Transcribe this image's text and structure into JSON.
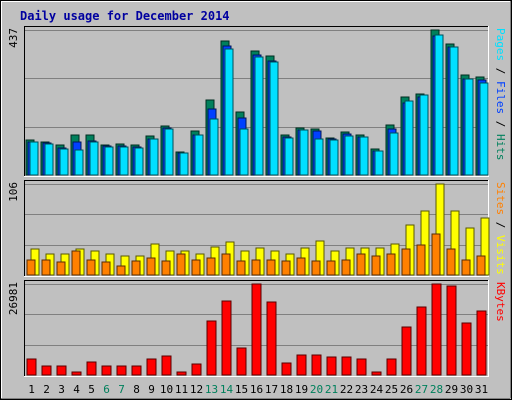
{
  "chart_data": {
    "type": "bar",
    "title": "Daily usage for December 2014",
    "categories": [
      "1",
      "2",
      "3",
      "4",
      "5",
      "6",
      "7",
      "8",
      "9",
      "10",
      "11",
      "12",
      "13",
      "14",
      "15",
      "16",
      "17",
      "18",
      "19",
      "20",
      "21",
      "22",
      "23",
      "24",
      "25",
      "26",
      "27",
      "28",
      "29",
      "30",
      "31"
    ],
    "weekend_days": [
      "6",
      "7",
      "13",
      "14",
      "20",
      "21",
      "27",
      "28"
    ],
    "panels": [
      {
        "id": "hits-files-pages",
        "y_max_label": "437",
        "ylim": [
          0,
          437
        ],
        "grid": true,
        "legend_words": [
          {
            "text": "Pages",
            "color": "#00e0ff"
          },
          {
            "text": "Files",
            "color": "#0040ff"
          },
          {
            "text": "Hits",
            "color": "#00805c"
          }
        ],
        "series": [
          {
            "name": "Hits",
            "color": "#00805c",
            "values": [
              105,
              100,
              90,
              120,
              120,
              90,
              93,
              90,
              118,
              148,
              70,
              133,
              225,
              405,
              190,
              375,
              358,
              122,
              143,
              140,
              112,
              130,
              120,
              78,
              152,
              235,
              245,
              437,
              395,
              302,
              295
            ]
          },
          {
            "name": "Files",
            "color": "#0040ff",
            "values": [
              100,
              95,
              80,
              98,
              103,
              86,
              88,
              85,
              110,
              142,
              67,
              120,
              200,
              390,
              172,
              362,
              345,
              115,
              137,
              133,
              108,
              125,
              115,
              73,
              140,
              218,
              235,
              420,
              385,
              290,
              285
            ]
          },
          {
            "name": "Pages",
            "color": "#00e0ff",
            "values": [
              100,
              93,
              78,
              75,
              100,
              85,
              85,
              80,
              110,
              140,
              65,
              120,
              170,
              380,
              140,
              357,
              342,
              112,
              137,
              110,
              105,
              118,
              115,
              73,
              128,
              224,
              240,
              422,
              385,
              288,
              278
            ]
          }
        ]
      },
      {
        "id": "visits-sites",
        "y_max_label": "106",
        "ylim": [
          0,
          106
        ],
        "grid": true,
        "legend_words": [
          {
            "text": "Sites",
            "color": "#ff8000"
          },
          {
            "text": "Visits",
            "color": "#ffff00"
          }
        ],
        "series": [
          {
            "name": "Visits",
            "color": "#ffff00",
            "values": [
              30,
              25,
              25,
              30,
              28,
              25,
              22,
              22,
              36,
              28,
              28,
              25,
              33,
              38,
              28,
              32,
              28,
              25,
              32,
              40,
              28,
              32,
              32,
              32,
              36,
              58,
              75,
              106,
              75,
              55,
              66
            ]
          },
          {
            "name": "Sites",
            "color": "#ff8000",
            "values": [
              18,
              18,
              15,
              28,
              18,
              15,
              10,
              16,
              20,
              16,
              25,
              18,
              20,
              25,
              16,
              18,
              18,
              16,
              20,
              16,
              16,
              18,
              25,
              22,
              25,
              30,
              35,
              48,
              30,
              18,
              22
            ]
          }
        ]
      },
      {
        "id": "kbytes",
        "y_max_label": "26981",
        "ylim": [
          0,
          26981
        ],
        "grid": true,
        "legend_words": [
          {
            "text": "KBytes",
            "color": "#ff0000"
          }
        ],
        "series": [
          {
            "name": "KBytes",
            "color": "#ff0000",
            "values": [
              4600,
              2800,
              2800,
              800,
              3900,
              2800,
              2700,
              2800,
              4700,
              5700,
              800,
              3200,
              16000,
              22000,
              8100,
              27000,
              21500,
              3700,
              5800,
              5800,
              5300,
              5300,
              4600,
              1000,
              4800,
              14300,
              20200,
              26900,
              26300,
              15400,
              19100
            ]
          }
        ]
      }
    ]
  }
}
